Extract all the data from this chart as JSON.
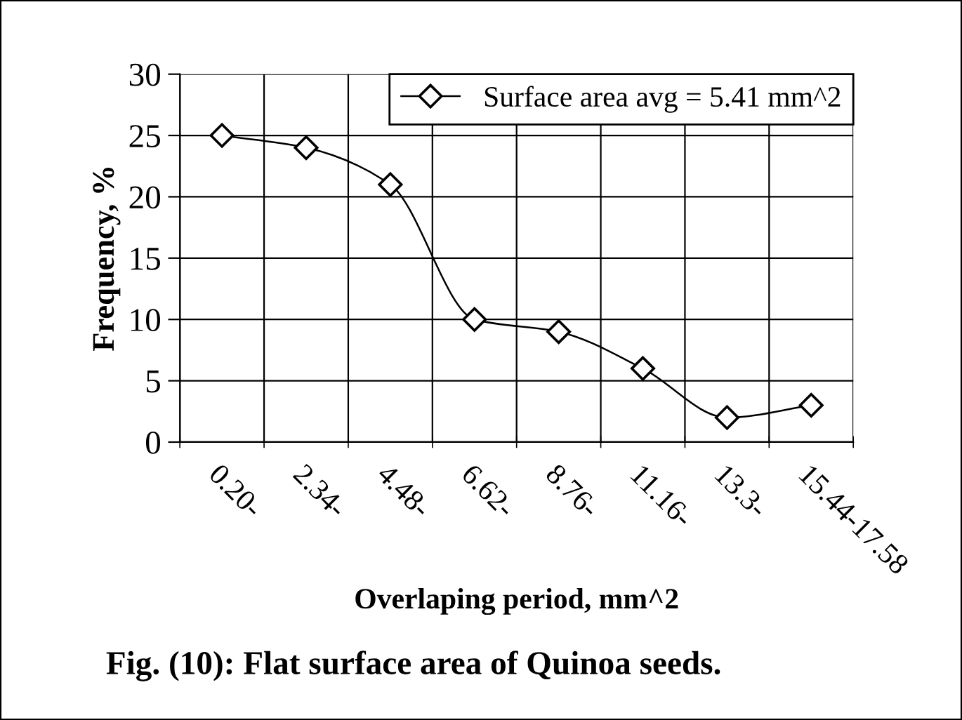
{
  "chart_data": {
    "type": "line",
    "title": "Fig. (10): Flat surface area of Quinoa seeds.",
    "xlabel": "Overlaping period, mm^2",
    "ylabel": "Frequency, %",
    "categories": [
      "0.20-",
      "2.34-",
      "4.48-",
      "6.62-",
      "8.76-",
      "11.16-",
      "13.3-",
      "15.44-17.58"
    ],
    "series": [
      {
        "name": "Surface area avg = 5.41 mm^2",
        "color": "#000000",
        "values": [
          25,
          24,
          21,
          10,
          9,
          6,
          2,
          3
        ]
      }
    ],
    "ylim": [
      0,
      30
    ],
    "yticks": [
      0,
      5,
      10,
      15,
      20,
      25,
      30
    ],
    "grid": true,
    "legend": "top right",
    "marker": "diamond",
    "line_style": "solid"
  }
}
